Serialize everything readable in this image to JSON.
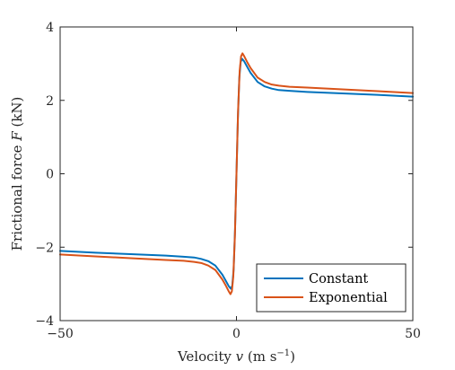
{
  "chart_data": {
    "type": "line",
    "xlabel_text": "Velocity ",
    "xlabel_var": "v",
    "xlabel_unit_open": " (m s",
    "xlabel_unit_sup": "−1",
    "xlabel_unit_close": ")",
    "ylabel_text": "Frictional force ",
    "ylabel_var": "F",
    "ylabel_unit": " (kN)",
    "xlim": [
      -50,
      50
    ],
    "ylim": [
      -4,
      4
    ],
    "xticks": [
      -50,
      0,
      50
    ],
    "xtick_labels": [
      "−50",
      "0",
      "50"
    ],
    "yticks": [
      -4,
      -2,
      0,
      2,
      4
    ],
    "ytick_labels": [
      "−4",
      "−2",
      "0",
      "2",
      "4"
    ],
    "grid": false,
    "legend_position": "bottom-right",
    "series": [
      {
        "name": "Constant",
        "color": "#0072BD",
        "points": [
          [
            -50,
            -2.1
          ],
          [
            -40,
            -2.15
          ],
          [
            -30,
            -2.19
          ],
          [
            -20,
            -2.23
          ],
          [
            -15,
            -2.26
          ],
          [
            -12,
            -2.28
          ],
          [
            -10,
            -2.32
          ],
          [
            -8,
            -2.38
          ],
          [
            -6,
            -2.5
          ],
          [
            -4,
            -2.75
          ],
          [
            -3,
            -2.92
          ],
          [
            -2.2,
            -3.06
          ],
          [
            -1.6,
            -3.13
          ],
          [
            -1.2,
            -3.05
          ],
          [
            -0.8,
            -2.6
          ],
          [
            -0.4,
            -1.5
          ],
          [
            0,
            0
          ],
          [
            0.4,
            1.5
          ],
          [
            0.8,
            2.6
          ],
          [
            1.2,
            3.05
          ],
          [
            1.6,
            3.13
          ],
          [
            2.2,
            3.06
          ],
          [
            3,
            2.92
          ],
          [
            4,
            2.75
          ],
          [
            6,
            2.5
          ],
          [
            8,
            2.38
          ],
          [
            10,
            2.32
          ],
          [
            12,
            2.28
          ],
          [
            15,
            2.26
          ],
          [
            20,
            2.23
          ],
          [
            30,
            2.19
          ],
          [
            40,
            2.15
          ],
          [
            50,
            2.1
          ]
        ]
      },
      {
        "name": "Exponential",
        "color": "#D95319",
        "points": [
          [
            -50,
            -2.2
          ],
          [
            -40,
            -2.25
          ],
          [
            -30,
            -2.3
          ],
          [
            -20,
            -2.35
          ],
          [
            -15,
            -2.37
          ],
          [
            -12,
            -2.4
          ],
          [
            -10,
            -2.43
          ],
          [
            -8,
            -2.5
          ],
          [
            -6,
            -2.62
          ],
          [
            -4,
            -2.88
          ],
          [
            -3,
            -3.05
          ],
          [
            -2.2,
            -3.2
          ],
          [
            -1.7,
            -3.28
          ],
          [
            -1.3,
            -3.2
          ],
          [
            -0.9,
            -2.8
          ],
          [
            -0.45,
            -1.7
          ],
          [
            0,
            0
          ],
          [
            0.45,
            1.7
          ],
          [
            0.9,
            2.8
          ],
          [
            1.3,
            3.2
          ],
          [
            1.7,
            3.28
          ],
          [
            2.2,
            3.2
          ],
          [
            3,
            3.05
          ],
          [
            4,
            2.88
          ],
          [
            6,
            2.62
          ],
          [
            8,
            2.5
          ],
          [
            10,
            2.43
          ],
          [
            12,
            2.4
          ],
          [
            15,
            2.37
          ],
          [
            20,
            2.35
          ],
          [
            30,
            2.3
          ],
          [
            40,
            2.25
          ],
          [
            50,
            2.2
          ]
        ]
      }
    ]
  }
}
